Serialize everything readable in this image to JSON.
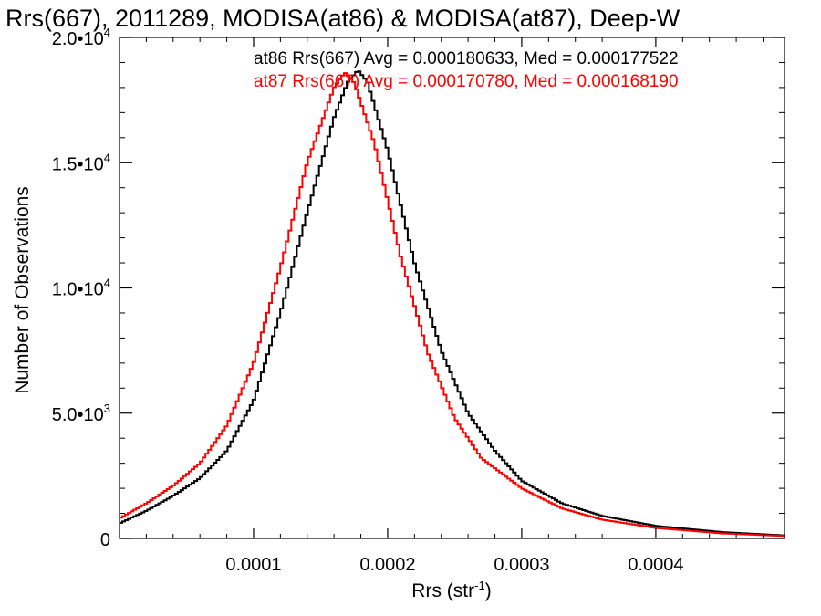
{
  "chart_data": {
    "type": "histogram",
    "title": "Rrs(667), 2011289, MODISA(at86) & MODISA(at87), Deep-W",
    "xlabel": "Rrs (str",
    "xlabel_sup": "-1",
    "xlabel_end": ")",
    "ylabel": "Number of Observations",
    "xlim": [
      0.0,
      0.000496
    ],
    "ylim": [
      0,
      20000
    ],
    "x_ticks": [
      {
        "value": 0.0001,
        "label": "0.0001"
      },
      {
        "value": 0.0002,
        "label": "0.0002"
      },
      {
        "value": 0.0003,
        "label": "0.0003"
      },
      {
        "value": 0.0004,
        "label": "0.0004"
      }
    ],
    "y_ticks": [
      {
        "value": 0,
        "mant": "0",
        "exp": ""
      },
      {
        "value": 5000,
        "mant": "5.0•10",
        "exp": "3"
      },
      {
        "value": 10000,
        "mant": "1.0•10",
        "exp": "4"
      },
      {
        "value": 15000,
        "mant": "1.5•10",
        "exp": "4"
      },
      {
        "value": 20000,
        "mant": "2.0•10",
        "exp": "4"
      }
    ],
    "series": [
      {
        "name": "at86",
        "color": "#000000",
        "legend": "at86 Rrs(667) Avg = 0.000180633, Med = 0.000177522",
        "x": [
          0.0,
          2e-05,
          4e-05,
          6e-05,
          8e-05,
          0.0001,
          0.00012,
          0.00014,
          0.00016,
          0.00017,
          0.000178,
          0.000185,
          0.0002,
          0.00022,
          0.00024,
          0.00026,
          0.00028,
          0.0003,
          0.00033,
          0.00036,
          0.0004,
          0.00045,
          0.000496
        ],
        "y": [
          600,
          1100,
          1700,
          2400,
          3500,
          5500,
          9000,
          13000,
          16800,
          18200,
          18700,
          18200,
          15500,
          11000,
          7500,
          5000,
          3500,
          2300,
          1400,
          900,
          500,
          250,
          120
        ]
      },
      {
        "name": "at87",
        "color": "#ff0000",
        "legend": "at87 Rrs(667) Avg = 0.000170780, Med = 0.000168190",
        "x": [
          0.0,
          2e-05,
          4e-05,
          6e-05,
          8e-05,
          0.0001,
          0.00012,
          0.00014,
          0.00016,
          0.000168,
          0.000175,
          0.00019,
          0.00021,
          0.00023,
          0.00025,
          0.00027,
          0.0003,
          0.00033,
          0.00036,
          0.0004,
          0.00045,
          0.000496
        ],
        "y": [
          800,
          1400,
          2100,
          3000,
          4500,
          7000,
          10800,
          15000,
          18000,
          18600,
          18200,
          15800,
          11200,
          7400,
          4800,
          3200,
          2000,
          1200,
          750,
          420,
          200,
          100
        ]
      }
    ]
  }
}
